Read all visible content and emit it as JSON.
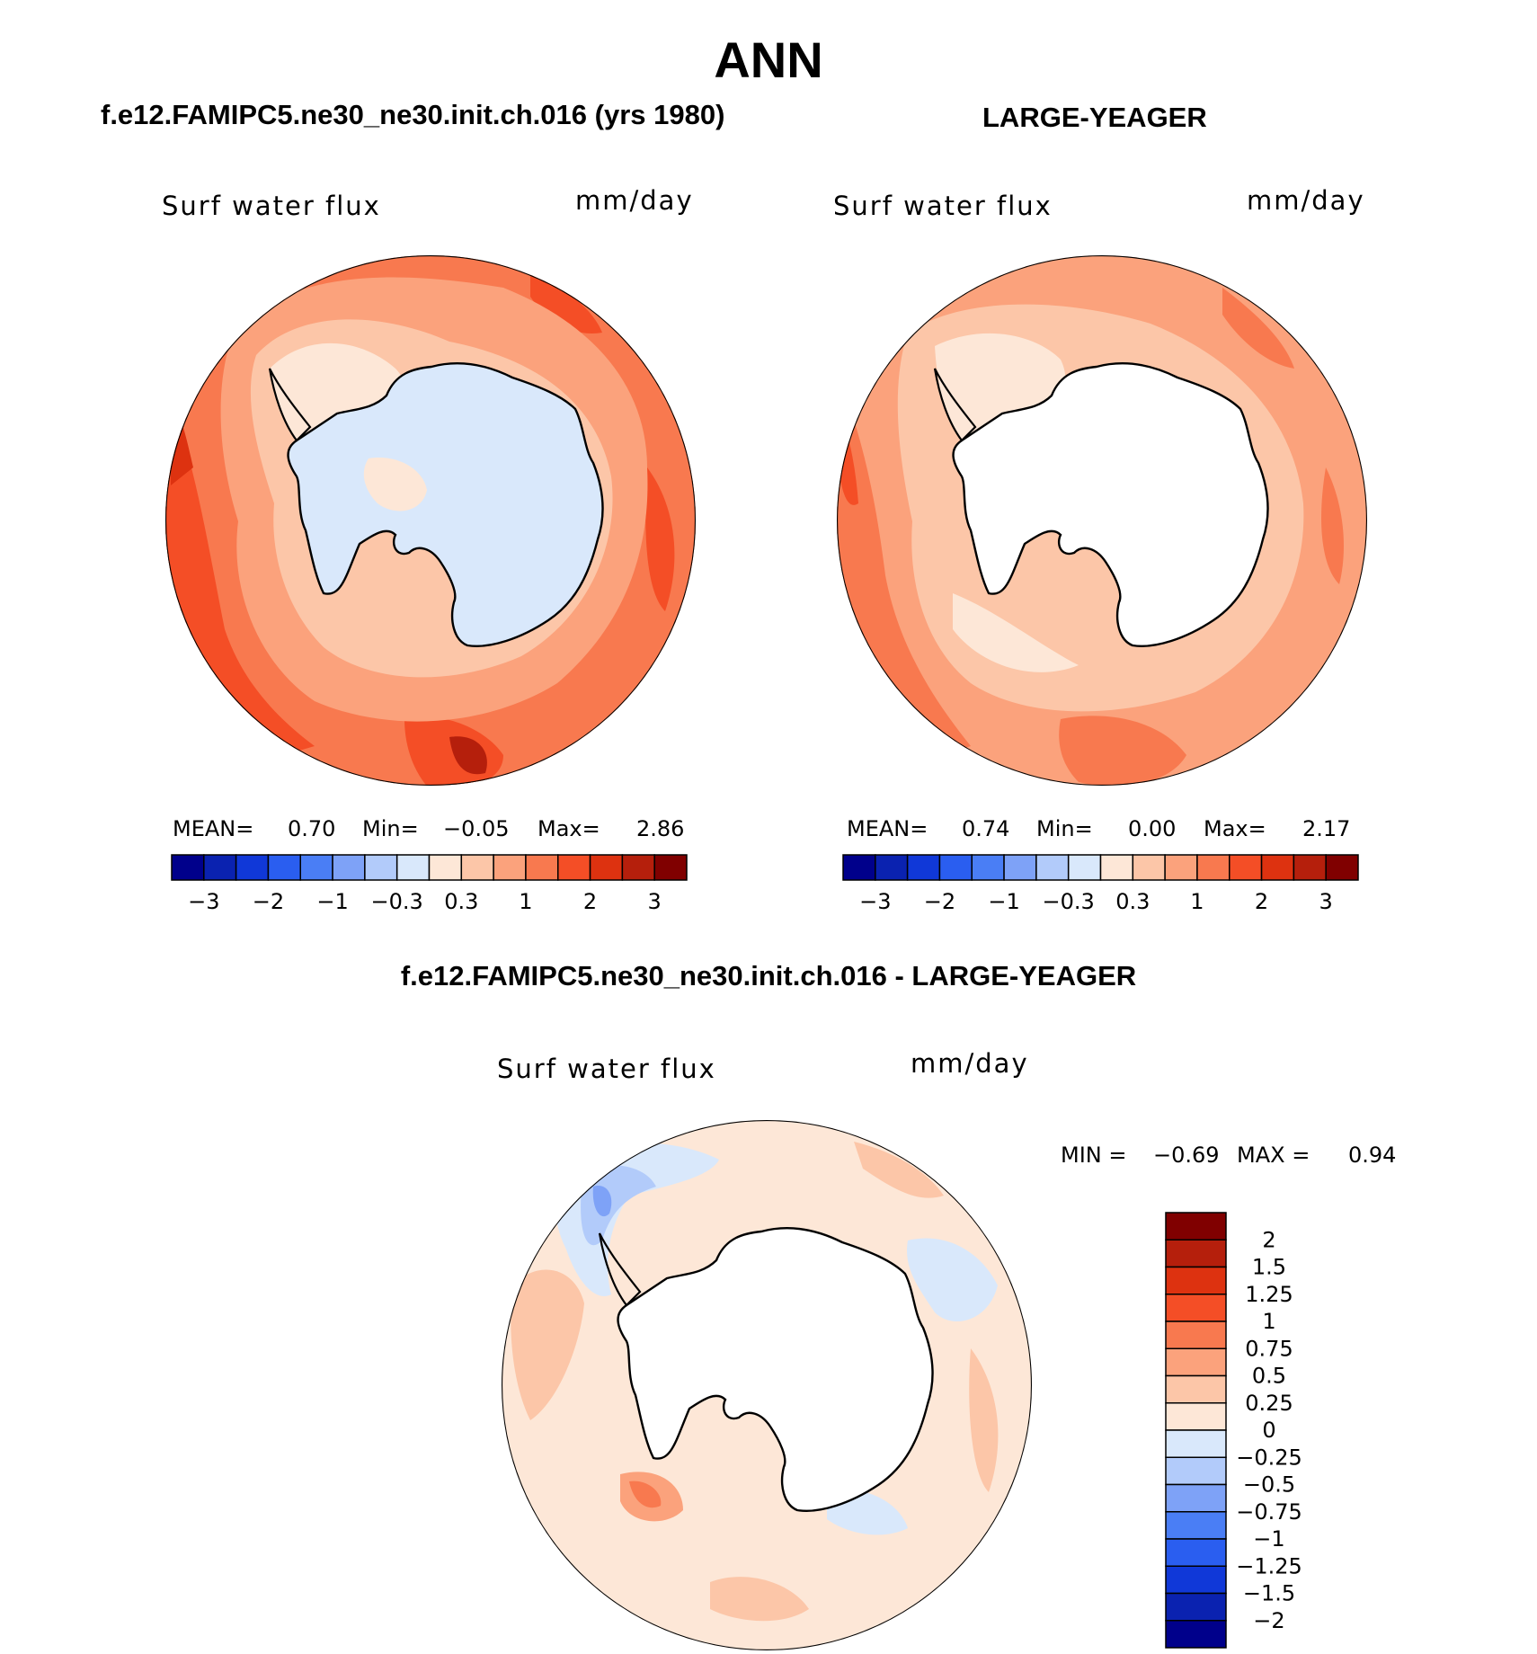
{
  "figure": {
    "season": "ANN",
    "case_title": "f.e12.FAMIPC5.ne30_ne30.init.ch.016 (yrs 1980)",
    "obs_title": "LARGE-YEAGER",
    "diff_title": "f.e12.FAMIPC5.ne30_ne30.init.ch.016 - LARGE-YEAGER"
  },
  "panels": [
    {
      "variable": "Surf water flux",
      "units": "mm/day",
      "stats": {
        "mean_label": "MEAN=",
        "mean": "0.70",
        "min_label": "Min=",
        "min": "−0.05",
        "max_label": "Max=",
        "max": "2.86"
      }
    },
    {
      "variable": "Surf water flux",
      "units": "mm/day",
      "stats": {
        "mean_label": "MEAN=",
        "mean": "0.74",
        "min_label": "Min=",
        "min": "0.00",
        "max_label": "Max=",
        "max": "2.17"
      }
    },
    {
      "variable": "Surf water flux",
      "units": "mm/day",
      "stats": {
        "min_label": "MIN =",
        "min": "−0.69",
        "max_label": "MAX =",
        "max": "0.94"
      }
    }
  ],
  "colors": {
    "main_scale": [
      "#00008b",
      "#0a22b0",
      "#1038d8",
      "#2a5ef0",
      "#4a7ef5",
      "#7ea2f7",
      "#b2cbfa",
      "#d9e8fb",
      "#fde7d7",
      "#fcc6a8",
      "#fba27c",
      "#f8794f",
      "#f44e26",
      "#dd3210",
      "#b51f0c",
      "#800000"
    ],
    "diff_scale": [
      "#00008b",
      "#0a22b0",
      "#1038d8",
      "#2a5ef0",
      "#4a7ef5",
      "#7ea2f7",
      "#b2cbfa",
      "#d9e8fb",
      "#fde7d7",
      "#fcc6a8",
      "#fba27c",
      "#f8794f",
      "#f44e26",
      "#dd3210",
      "#b51f0c",
      "#800000"
    ],
    "land_white": "#ffffff",
    "coast": "#000000"
  },
  "chart_data": [
    {
      "type": "heatmap",
      "projection": "south-polar-stereographic",
      "title": "f.e12.FAMIPC5.ne30_ne30.init.ch.016 (yrs 1980)",
      "variable": "Surf water flux",
      "units": "mm/day",
      "mean": 0.7,
      "min": -0.05,
      "max": 2.86,
      "contour_levels": [
        -3,
        -2.5,
        -2,
        -1.5,
        -1,
        -0.5,
        -0.3,
        0,
        0.3,
        0.5,
        1,
        1.5,
        2,
        2.5,
        3
      ],
      "colorbar_tick_labels": [
        "−3",
        "−2",
        "−1",
        "−0.3",
        "0.3",
        "1",
        "2",
        "3"
      ]
    },
    {
      "type": "heatmap",
      "projection": "south-polar-stereographic",
      "title": "LARGE-YEAGER",
      "variable": "Surf water flux",
      "units": "mm/day",
      "mean": 0.74,
      "min": 0.0,
      "max": 2.17,
      "contour_levels": [
        -3,
        -2.5,
        -2,
        -1.5,
        -1,
        -0.5,
        -0.3,
        0,
        0.3,
        0.5,
        1,
        1.5,
        2,
        2.5,
        3
      ],
      "colorbar_tick_labels": [
        "−3",
        "−2",
        "−1",
        "−0.3",
        "0.3",
        "1",
        "2",
        "3"
      ]
    },
    {
      "type": "heatmap",
      "projection": "south-polar-stereographic",
      "title": "f.e12.FAMIPC5.ne30_ne30.init.ch.016 - LARGE-YEAGER",
      "variable": "Surf water flux",
      "units": "mm/day",
      "min": -0.69,
      "max": 0.94,
      "contour_levels": [
        -2,
        -1.5,
        -1.25,
        -1,
        -0.75,
        -0.5,
        -0.25,
        0,
        0.25,
        0.5,
        0.75,
        1,
        1.25,
        1.5,
        2
      ],
      "colorbar_tick_labels": [
        "2",
        "1.5",
        "1.25",
        "1",
        "0.75",
        "0.5",
        "0.25",
        "0",
        "−0.25",
        "−0.5",
        "−0.75",
        "−1",
        "−1.25",
        "−1.5",
        "−2"
      ]
    }
  ]
}
